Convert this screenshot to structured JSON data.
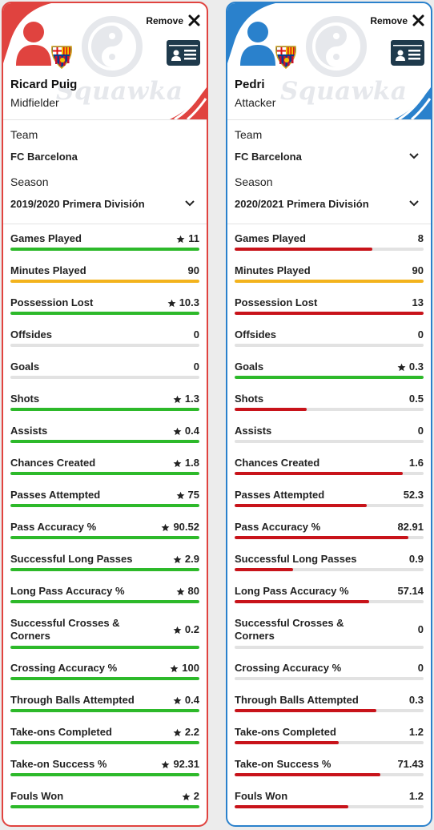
{
  "colors": {
    "green": "#2db92a",
    "red": "#c8131a",
    "yellow": "#f3b31d"
  },
  "labels": {
    "remove": "Remove",
    "team": "Team",
    "season": "Season",
    "watermark": "Squawka"
  },
  "players": [
    {
      "side": "left",
      "accent": "#e0433f",
      "name": "Ricard Puig",
      "position": "Midfielder",
      "team": "FC Barcelona",
      "season": "2019/2020 Primera División",
      "team_has_dropdown": false,
      "stats": [
        {
          "label": "Games Played",
          "value": "11",
          "star": true,
          "fill": 1.0,
          "color": "green"
        },
        {
          "label": "Minutes Played",
          "value": "90",
          "star": false,
          "fill": 1.0,
          "color": "yellow"
        },
        {
          "label": "Possession Lost",
          "value": "10.3",
          "star": true,
          "fill": 1.0,
          "color": "green"
        },
        {
          "label": "Offsides",
          "value": "0",
          "star": false,
          "fill": 0,
          "color": "green"
        },
        {
          "label": "Goals",
          "value": "0",
          "star": false,
          "fill": 0,
          "color": "green"
        },
        {
          "label": "Shots",
          "value": "1.3",
          "star": true,
          "fill": 1.0,
          "color": "green"
        },
        {
          "label": "Assists",
          "value": "0.4",
          "star": true,
          "fill": 1.0,
          "color": "green"
        },
        {
          "label": "Chances Created",
          "value": "1.8",
          "star": true,
          "fill": 1.0,
          "color": "green"
        },
        {
          "label": "Passes Attempted",
          "value": "75",
          "star": true,
          "fill": 1.0,
          "color": "green"
        },
        {
          "label": "Pass Accuracy %",
          "value": "90.52",
          "star": true,
          "fill": 1.0,
          "color": "green"
        },
        {
          "label": "Successful Long Passes",
          "value": "2.9",
          "star": true,
          "fill": 1.0,
          "color": "green"
        },
        {
          "label": "Long Pass Accuracy %",
          "value": "80",
          "star": true,
          "fill": 1.0,
          "color": "green"
        },
        {
          "label": "Successful Crosses & Corners",
          "value": "0.2",
          "star": true,
          "fill": 1.0,
          "color": "green",
          "tall": true
        },
        {
          "label": "Crossing Accuracy %",
          "value": "100",
          "star": true,
          "fill": 1.0,
          "color": "green"
        },
        {
          "label": "Through Balls Attempted",
          "value": "0.4",
          "star": true,
          "fill": 1.0,
          "color": "green"
        },
        {
          "label": "Take-ons Completed",
          "value": "2.2",
          "star": true,
          "fill": 1.0,
          "color": "green"
        },
        {
          "label": "Take-on Success %",
          "value": "92.31",
          "star": true,
          "fill": 1.0,
          "color": "green"
        },
        {
          "label": "Fouls Won",
          "value": "2",
          "star": true,
          "fill": 1.0,
          "color": "green"
        }
      ]
    },
    {
      "side": "right",
      "accent": "#2a81cc",
      "name": "Pedri",
      "position": "Attacker",
      "team": "FC Barcelona",
      "season": "2020/2021 Primera División",
      "team_has_dropdown": true,
      "stats": [
        {
          "label": "Games Played",
          "value": "8",
          "star": false,
          "fill": 0.73,
          "color": "red"
        },
        {
          "label": "Minutes Played",
          "value": "90",
          "star": false,
          "fill": 1.0,
          "color": "yellow"
        },
        {
          "label": "Possession Lost",
          "value": "13",
          "star": false,
          "fill": 1.0,
          "color": "red"
        },
        {
          "label": "Offsides",
          "value": "0",
          "star": false,
          "fill": 0,
          "color": "red"
        },
        {
          "label": "Goals",
          "value": "0.3",
          "star": true,
          "fill": 1.0,
          "color": "green"
        },
        {
          "label": "Shots",
          "value": "0.5",
          "star": false,
          "fill": 0.38,
          "color": "red"
        },
        {
          "label": "Assists",
          "value": "0",
          "star": false,
          "fill": 0,
          "color": "red"
        },
        {
          "label": "Chances Created",
          "value": "1.6",
          "star": false,
          "fill": 0.89,
          "color": "red"
        },
        {
          "label": "Passes Attempted",
          "value": "52.3",
          "star": false,
          "fill": 0.7,
          "color": "red"
        },
        {
          "label": "Pass Accuracy %",
          "value": "82.91",
          "star": false,
          "fill": 0.92,
          "color": "red"
        },
        {
          "label": "Successful Long Passes",
          "value": "0.9",
          "star": false,
          "fill": 0.31,
          "color": "red"
        },
        {
          "label": "Long Pass Accuracy %",
          "value": "57.14",
          "star": false,
          "fill": 0.71,
          "color": "red"
        },
        {
          "label": "Successful Crosses & Corners",
          "value": "0",
          "star": false,
          "fill": 0,
          "color": "red",
          "tall": true
        },
        {
          "label": "Crossing Accuracy %",
          "value": "0",
          "star": false,
          "fill": 0,
          "color": "red"
        },
        {
          "label": "Through Balls Attempted",
          "value": "0.3",
          "star": false,
          "fill": 0.75,
          "color": "red"
        },
        {
          "label": "Take-ons Completed",
          "value": "1.2",
          "star": false,
          "fill": 0.55,
          "color": "red"
        },
        {
          "label": "Take-on Success %",
          "value": "71.43",
          "star": false,
          "fill": 0.77,
          "color": "red"
        },
        {
          "label": "Fouls Won",
          "value": "1.2",
          "star": false,
          "fill": 0.6,
          "color": "red"
        }
      ]
    }
  ]
}
